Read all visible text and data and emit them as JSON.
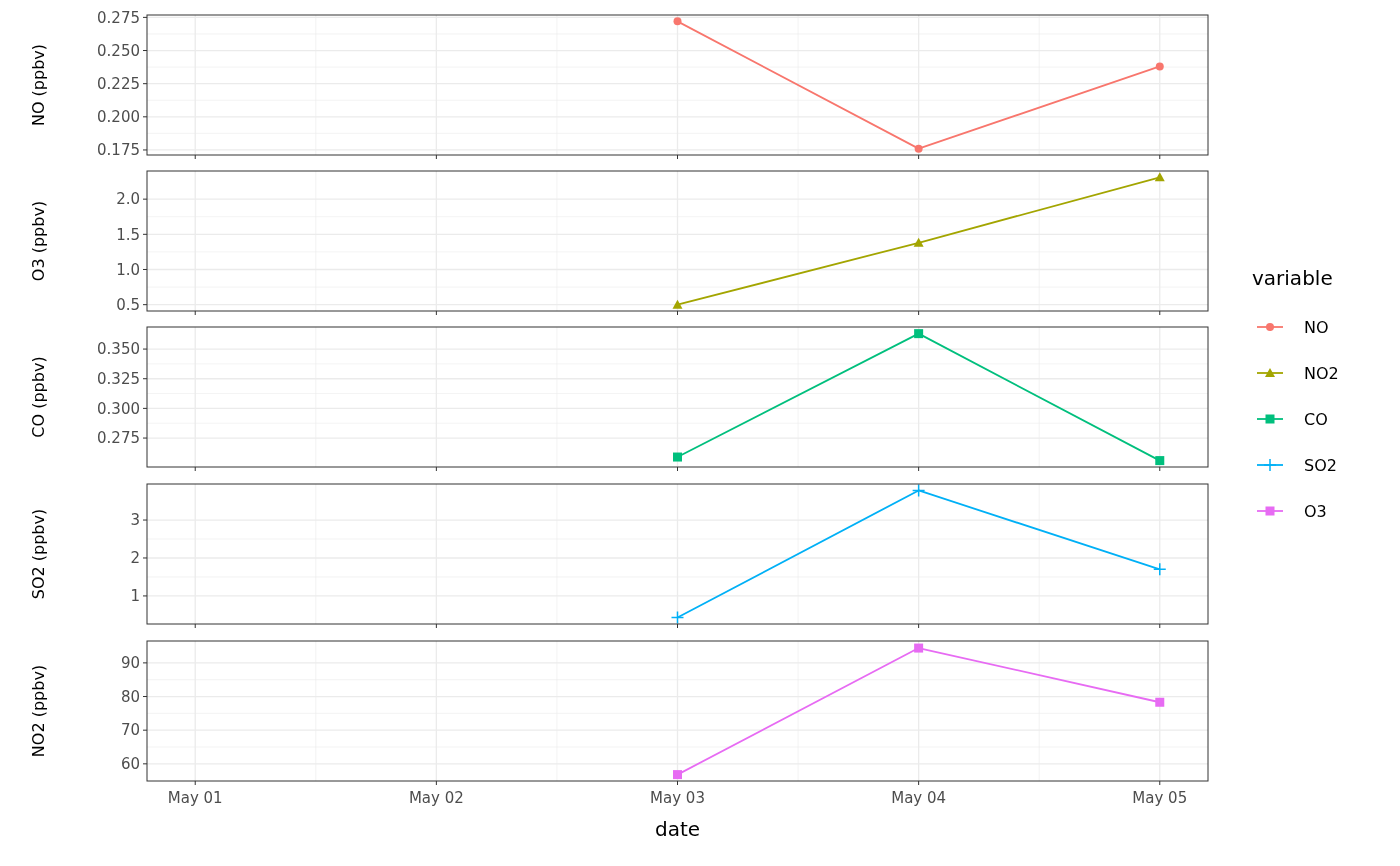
{
  "chart_data": [
    {
      "type": "line",
      "ylabel": "NO (ppbv)",
      "x": [
        "--05-03",
        "--05-04",
        "--05-05"
      ],
      "xlim": [
        "--04-30T19:12",
        "--05-05T04:48"
      ],
      "xticks": [
        {
          "value": "--05-01",
          "label": null
        },
        {
          "value": "--05-02",
          "label": null
        },
        {
          "value": "--05-03",
          "label": null
        },
        {
          "value": "--05-04",
          "label": null
        },
        {
          "value": "--05-05",
          "label": null
        }
      ],
      "ylim": [
        0.1712,
        0.2768
      ],
      "yticks": [
        {
          "value": 0.175,
          "label": "0.175"
        },
        {
          "value": 0.2,
          "label": "0.200"
        },
        {
          "value": 0.225,
          "label": "0.225"
        },
        {
          "value": 0.25,
          "label": "0.250"
        },
        {
          "value": 0.275,
          "label": "0.275"
        }
      ],
      "tick_labels": "y",
      "grid": true,
      "legend": "right",
      "legend_title": "variable",
      "marker": "circle",
      "series": [
        {
          "name": "NO",
          "color": "#f8766d",
          "values": [
            0.272,
            0.176,
            0.238
          ]
        }
      ]
    },
    {
      "type": "line",
      "ylabel": "O3 (ppbv)",
      "x": [
        "--05-03",
        "--05-04",
        "--05-05"
      ],
      "xlim": [
        "--04-30T19:12",
        "--05-05T04:48"
      ],
      "xticks": [
        {
          "value": "--05-01",
          "label": null
        },
        {
          "value": "--05-02",
          "label": null
        },
        {
          "value": "--05-03",
          "label": null
        },
        {
          "value": "--05-04",
          "label": null
        },
        {
          "value": "--05-05",
          "label": null
        }
      ],
      "ylim": [
        0.41,
        2.4
      ],
      "yticks": [
        {
          "value": 0.5,
          "label": "0.5"
        },
        {
          "value": 1,
          "label": "1.0"
        },
        {
          "value": 1.5,
          "label": "1.5"
        },
        {
          "value": 2,
          "label": "2.0"
        }
      ],
      "tick_labels": "y",
      "grid": true,
      "legend": "right",
      "marker": "triangle",
      "series": [
        {
          "name": "NO2",
          "color": "#a3a500",
          "values": [
            0.5,
            1.38,
            2.31
          ]
        }
      ]
    },
    {
      "type": "line",
      "ylabel": "CO (ppbv)",
      "x": [
        "--05-03",
        "--05-04",
        "--05-05"
      ],
      "xlim": [
        "--04-30T19:12",
        "--05-05T04:48"
      ],
      "xticks": [
        {
          "value": "--05-01",
          "label": null
        },
        {
          "value": "--05-02",
          "label": null
        },
        {
          "value": "--05-03",
          "label": null
        },
        {
          "value": "--05-04",
          "label": null
        },
        {
          "value": "--05-05",
          "label": null
        }
      ],
      "ylim": [
        0.2506,
        0.3686
      ],
      "yticks": [
        {
          "value": 0.275,
          "label": "0.275"
        },
        {
          "value": 0.3,
          "label": "0.300"
        },
        {
          "value": 0.325,
          "label": "0.325"
        },
        {
          "value": 0.35,
          "label": "0.350"
        }
      ],
      "tick_labels": "y",
      "grid": true,
      "legend": "right",
      "marker": "square",
      "series": [
        {
          "name": "CO",
          "color": "#00bf7d",
          "values": [
            0.259,
            0.363,
            0.256
          ]
        }
      ]
    },
    {
      "type": "line",
      "ylabel": "SO2 (ppbv)",
      "x": [
        "--05-03",
        "--05-04",
        "--05-05"
      ],
      "xlim": [
        "--04-30T19:12",
        "--05-05T04:48"
      ],
      "xticks": [
        {
          "value": "--05-01",
          "label": null
        },
        {
          "value": "--05-02",
          "label": null
        },
        {
          "value": "--05-03",
          "label": null
        },
        {
          "value": "--05-04",
          "label": null
        },
        {
          "value": "--05-05",
          "label": null
        }
      ],
      "ylim": [
        0.26,
        3.95
      ],
      "yticks": [
        1,
        2,
        3
      ],
      "tick_labels": "y",
      "grid": true,
      "legend": "right",
      "marker": "cross",
      "series": [
        {
          "name": "SO2",
          "color": "#00b0f6",
          "values": [
            0.43,
            3.78,
            1.7
          ]
        }
      ]
    },
    {
      "type": "line",
      "ylabel": "NO2 (ppbv)",
      "xlabel": "date",
      "x": [
        "--05-03",
        "--05-04",
        "--05-05"
      ],
      "xlim": [
        "--04-30T19:12",
        "--05-05T04:48"
      ],
      "xticks": [
        {
          "value": "--05-01",
          "label": "May 01"
        },
        {
          "value": "--05-02",
          "label": "May 02"
        },
        {
          "value": "--05-03",
          "label": "May 03"
        },
        {
          "value": "--05-04",
          "label": "May 04"
        },
        {
          "value": "--05-05",
          "label": "May 05"
        }
      ],
      "ylim": [
        54.9,
        96.5
      ],
      "yticks": [
        60,
        70,
        80,
        90
      ],
      "grid": true,
      "legend": "right",
      "marker": "square",
      "series": [
        {
          "name": "O3",
          "color": "#e76bf3",
          "values": [
            56.8,
            94.4,
            78.3
          ]
        }
      ]
    }
  ]
}
